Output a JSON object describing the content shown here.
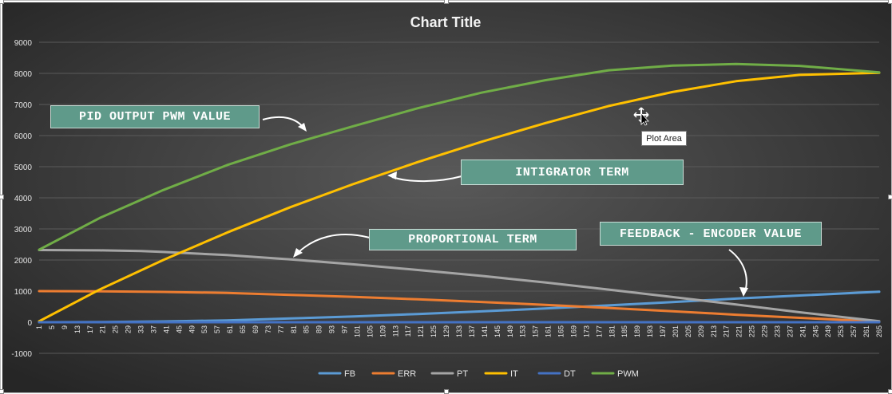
{
  "chart_data": {
    "type": "line",
    "title": "Chart Title",
    "x_start": 1,
    "x_end": 265,
    "x_step": 4,
    "ylim": [
      -1000,
      9000
    ],
    "y_ticks": [
      -1000,
      0,
      1000,
      2000,
      3000,
      4000,
      5000,
      6000,
      7000,
      8000,
      9000
    ],
    "grid": true,
    "legend_position": "bottom",
    "series": [
      {
        "name": "FB",
        "color": "#5b9bd5",
        "x": [
          1,
          20,
          40,
          60,
          80,
          100,
          120,
          140,
          160,
          180,
          200,
          220,
          240,
          265
        ],
        "y": [
          0,
          5,
          25,
          60,
          120,
          185,
          265,
          350,
          440,
          540,
          645,
          760,
          860,
          980
        ]
      },
      {
        "name": "ERR",
        "color": "#ed7d31",
        "x": [
          1,
          20,
          40,
          60,
          80,
          100,
          120,
          140,
          160,
          180,
          200,
          220,
          240,
          265
        ],
        "y": [
          1000,
          995,
          975,
          940,
          880,
          815,
          735,
          650,
          560,
          460,
          355,
          240,
          140,
          20
        ]
      },
      {
        "name": "PT",
        "color": "#a5a5a5",
        "x": [
          1,
          20,
          33,
          40,
          60,
          80,
          100,
          120,
          140,
          160,
          180,
          200,
          220,
          240,
          265
        ],
        "y": [
          2320,
          2310,
          2290,
          2260,
          2160,
          2020,
          1860,
          1680,
          1490,
          1280,
          1050,
          810,
          570,
          320,
          30
        ]
      },
      {
        "name": "IT",
        "color": "#ffc000",
        "x": [
          1,
          20,
          40,
          60,
          80,
          100,
          120,
          140,
          160,
          180,
          200,
          220,
          240,
          265
        ],
        "y": [
          30,
          1050,
          2000,
          2880,
          3700,
          4450,
          5150,
          5800,
          6400,
          6950,
          7400,
          7750,
          7950,
          8020
        ]
      },
      {
        "name": "DT",
        "color": "#4472c4",
        "x": [
          1,
          265
        ],
        "y": [
          0,
          0
        ]
      },
      {
        "name": "PWM",
        "color": "#70ad47",
        "x": [
          1,
          20,
          40,
          60,
          80,
          100,
          120,
          140,
          160,
          180,
          200,
          220,
          240,
          265
        ],
        "y": [
          2330,
          3350,
          4250,
          5050,
          5720,
          6310,
          6880,
          7380,
          7780,
          8100,
          8250,
          8300,
          8240,
          8030
        ]
      }
    ]
  },
  "callouts": {
    "pwm": "PID OUTPUT PWM VALUE",
    "integrator": "INTIGRATOR TERM",
    "proportional": "PROPORTIONAL TERM",
    "feedback": "FEEDBACK - ENCODER VALUE"
  },
  "tooltip": "Plot Area"
}
